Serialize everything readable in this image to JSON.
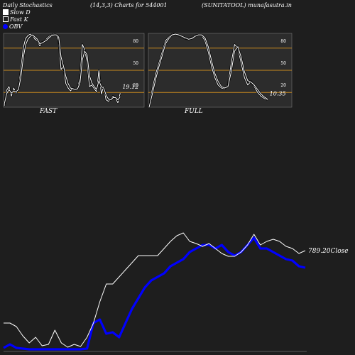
{
  "header": {
    "left": "Daily Stochastics",
    "middle": "(14,3,3) Charts for 544001",
    "right": "(SUNITATOOL) munafasutra.in"
  },
  "legend": {
    "slow_d": "Slow  D",
    "fast_k": "Fast K",
    "obv": "OBV"
  },
  "colors": {
    "background": "#1e1e1e",
    "panel": "#2c2c2c",
    "level_line": "#c98a1e",
    "stoch_line": "#ffffff",
    "obv_line": "#0000ff",
    "price_line": "#ffffff"
  },
  "chart_data": [
    {
      "type": "line",
      "panel": "FAST",
      "label": "FAST",
      "ylim": [
        0,
        100
      ],
      "levels": [
        20,
        50,
        80
      ],
      "level_labels": [
        "20",
        "50",
        "80"
      ],
      "last_value_label": "19.12",
      "series": [
        {
          "role": "k",
          "values": [
            2,
            23,
            28,
            15,
            26,
            19,
            25,
            50,
            80,
            93,
            97,
            99,
            97,
            92,
            90,
            83,
            88,
            89,
            93,
            96,
            98,
            99,
            98,
            90,
            51,
            55,
            32,
            26,
            22,
            26,
            24,
            25,
            40,
            85,
            78,
            61,
            28,
            30,
            25,
            21,
            50,
            18,
            28,
            10,
            8,
            11,
            15,
            12,
            6,
            19
          ]
        },
        {
          "role": "d",
          "values": [
            4,
            18,
            24,
            19,
            22,
            21,
            24,
            40,
            66,
            84,
            92,
            96,
            98,
            95,
            92,
            86,
            87,
            89,
            91,
            94,
            97,
            98,
            98,
            95,
            68,
            56,
            42,
            32,
            26,
            25,
            24,
            25,
            33,
            64,
            76,
            71,
            43,
            33,
            28,
            24,
            36,
            28,
            26,
            17,
            11,
            10,
            13,
            13,
            10,
            14
          ]
        }
      ]
    },
    {
      "type": "line",
      "panel": "FULL",
      "label": "FULL",
      "ylim": [
        0,
        100
      ],
      "levels": [
        20,
        50,
        80
      ],
      "level_labels": [
        "20",
        "50",
        "80"
      ],
      "last_value_label": "10.35",
      "series": [
        {
          "role": "k",
          "values": [
            0,
            25,
            45,
            60,
            75,
            90,
            95,
            99,
            99,
            97,
            95,
            93,
            92,
            94,
            97,
            98,
            97,
            90,
            75,
            55,
            40,
            30,
            26,
            25,
            30,
            60,
            85,
            80,
            60,
            40,
            30,
            35,
            28,
            20,
            15,
            12,
            10
          ]
        },
        {
          "role": "d",
          "values": [
            0,
            18,
            38,
            55,
            70,
            86,
            93,
            98,
            99,
            98,
            96,
            94,
            92,
            93,
            96,
            98,
            98,
            94,
            82,
            63,
            46,
            35,
            28,
            26,
            28,
            48,
            76,
            82,
            68,
            48,
            36,
            34,
            30,
            24,
            18,
            14,
            11
          ]
        }
      ]
    },
    {
      "type": "line",
      "panel": "OBV",
      "last_value_label": "789.20Close",
      "series": [
        {
          "name": "Close",
          "values": [
            40,
            40,
            35,
            22,
            12,
            20,
            8,
            10,
            30,
            12,
            6,
            10,
            7,
            20,
            40,
            70,
            95,
            95,
            105,
            115,
            125,
            135,
            135,
            135,
            135,
            145,
            155,
            163,
            167,
            155,
            152,
            148,
            152,
            145,
            138,
            134,
            134,
            140,
            150,
            165,
            150,
            155,
            158,
            155,
            148,
            145,
            138,
            142
          ]
        },
        {
          "name": "OBV",
          "values": [
            5,
            10,
            5,
            4,
            3,
            3,
            3,
            3,
            3,
            3,
            3,
            3,
            3,
            4,
            40,
            45,
            25,
            27,
            20,
            40,
            60,
            75,
            90,
            100,
            105,
            110,
            120,
            125,
            130,
            140,
            145,
            150,
            150,
            145,
            150,
            140,
            135,
            140,
            150,
            160,
            145,
            145,
            140,
            135,
            130,
            128,
            120,
            118
          ]
        }
      ]
    }
  ]
}
